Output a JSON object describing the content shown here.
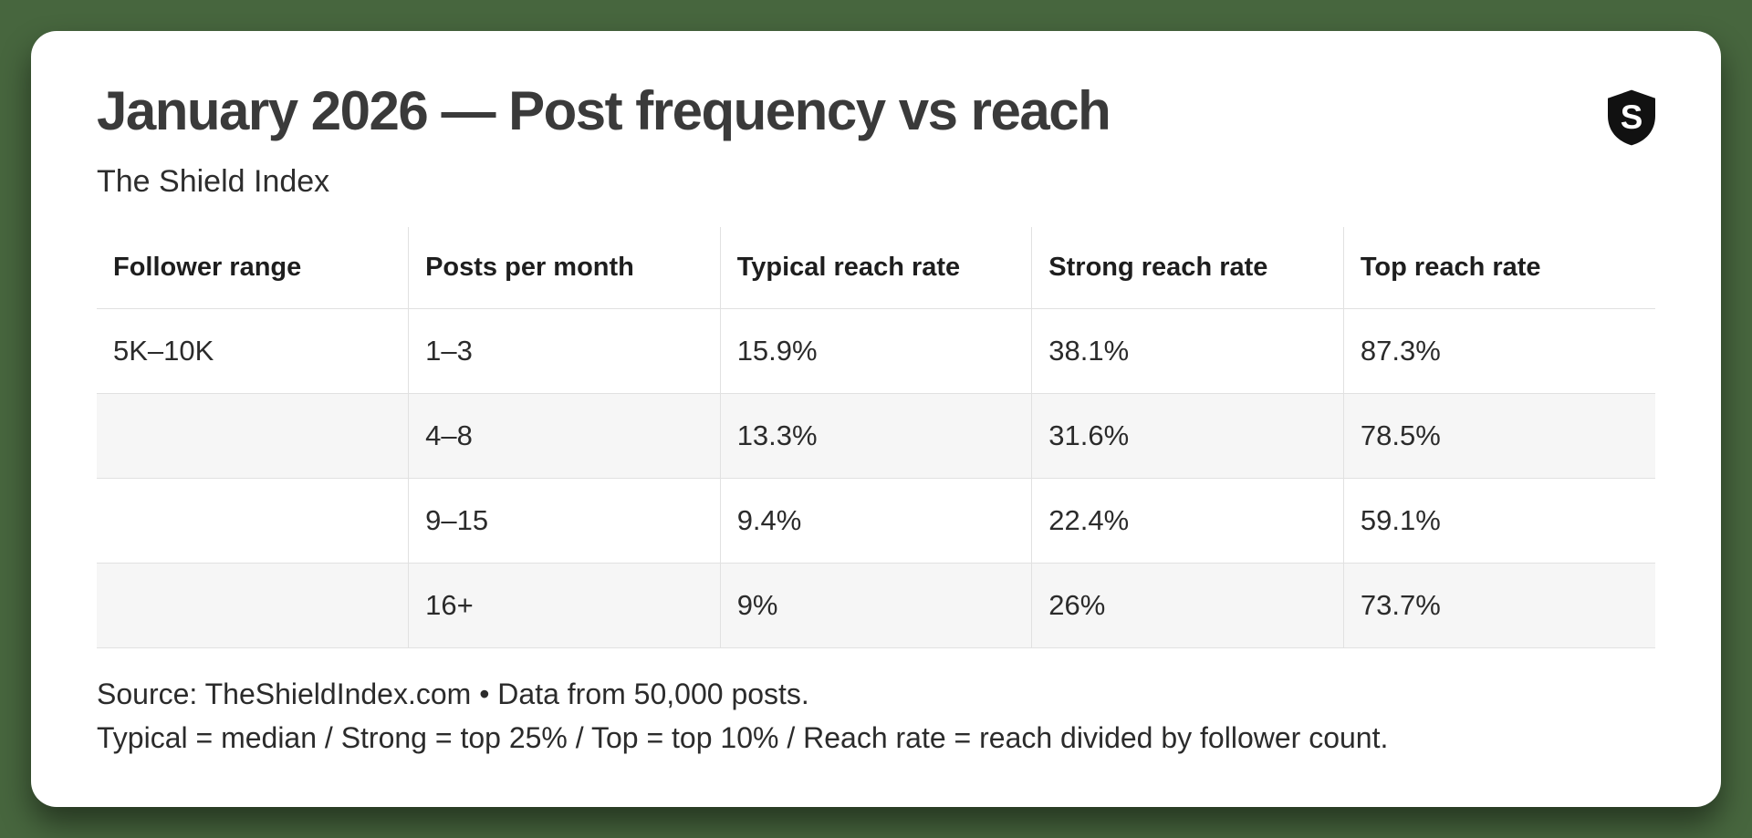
{
  "chart_data": {
    "type": "table",
    "title": "January 2026 — Post frequency vs reach",
    "subtitle": "The Shield Index",
    "columns": [
      "Follower range",
      "Posts per month",
      "Typical reach rate",
      "Strong reach rate",
      "Top reach rate"
    ],
    "rows": [
      [
        "5K–10K",
        "1–3",
        "15.9%",
        "38.1%",
        "87.3%"
      ],
      [
        "",
        "4–8",
        "13.3%",
        "31.6%",
        "78.5%"
      ],
      [
        "",
        "9–15",
        "9.4%",
        "22.4%",
        "59.1%"
      ],
      [
        "",
        "16+",
        "9%",
        "26%",
        "73.7%"
      ]
    ],
    "notes": [
      "Source: TheShieldIndex.com • Data from 50,000 posts.",
      "Typical = median / Strong = top 25% / Top = top 10% / Reach rate = reach divided by follower count."
    ]
  },
  "logo": {
    "icon": "shield-icon",
    "letter": "S"
  },
  "colors": {
    "background": "#47663e",
    "card": "#ffffff",
    "border": "#e1e1e1",
    "row_alt": "#f6f6f6",
    "title_text": "#3a3a3a",
    "body_text": "#2b2b2b",
    "logo": "#111111"
  }
}
